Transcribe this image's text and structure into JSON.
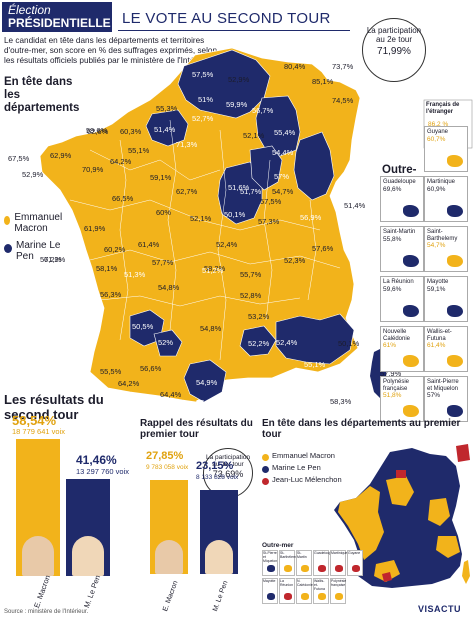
{
  "header": {
    "badge_line1": "Élection",
    "badge_line2": "PRÉSIDENTIELLE",
    "title": "LE VOTE AU SECOND TOUR"
  },
  "intro": "Le candidat en tête dans les départements et territoires d'outre-mer, son score en % des suffrages exprimés, selon les résultats officiels publiés par le ministère de l'Intérieur.",
  "map_section_title": "En tête dans les départements",
  "legend": [
    {
      "label": "Emmanuel Macron",
      "color": "#f2b31b"
    },
    {
      "label": "Marine Le Pen",
      "color": "#1f2a6b"
    }
  ],
  "participation_second": {
    "label": "La participation au 2e tour",
    "value": "71,99%"
  },
  "francais_etranger": {
    "label": "Français de l'étranger",
    "value": "86,2 %"
  },
  "outremer_title": "Outre-mer",
  "outremer": [
    {
      "name": "Guyane",
      "value": "60,7%",
      "winner": "macron"
    },
    {
      "name": "Guadeloupe",
      "value": "69,6%",
      "winner": "lepen"
    },
    {
      "name": "Martinique",
      "value": "60,9%",
      "winner": "lepen"
    },
    {
      "name": "Saint-Martin",
      "value": "55,8%",
      "winner": "lepen"
    },
    {
      "name": "Saint-Barthelemy",
      "value": "54,7%",
      "winner": "macron"
    },
    {
      "name": "La Réunion",
      "value": "59,6%",
      "winner": "lepen"
    },
    {
      "name": "Mayotte",
      "value": "59,1%",
      "winner": "lepen"
    },
    {
      "name": "Nouvelle Calédonie",
      "value": "61%",
      "winner": "macron"
    },
    {
      "name": "Wallis-et-Futuna",
      "value": "61,4%",
      "winner": "macron"
    },
    {
      "name": "Polynésie française",
      "value": "51,8%",
      "winner": "macron"
    },
    {
      "name": "Saint-Pierre et Miquelon",
      "value": "57%",
      "winner": "lepen"
    }
  ],
  "map_labels": [
    "57,5%",
    "52,9%",
    "51%",
    "55,3%",
    "59,9%",
    "56,7%",
    "52,7%",
    "51,4%",
    "62,6%",
    "71,3%",
    "52,1%",
    "55,4%",
    "60,3%",
    "59,6%",
    "55,1%",
    "67,5%",
    "62,9%",
    "73,7%",
    "52,9%",
    "80,4%",
    "85,1%",
    "74,5%",
    "70,9%",
    "64,2%",
    "66,5%",
    "59,1%",
    "60%",
    "62,7%",
    "61,9%",
    "52,1%",
    "51,6%",
    "57,5%",
    "61,2%",
    "56,9%",
    "50,1%",
    "57,3%",
    "51,4%",
    "57,6%",
    "52,4%",
    "52,3%",
    "51,7%",
    "57%",
    "54,4%",
    "54,7%",
    "57,2%",
    "61,4%",
    "57,7%",
    "58,1%",
    "60,2%",
    "56,3%",
    "51,3%",
    "54,8%",
    "58,2%",
    "55,7%",
    "50,5%",
    "52%",
    "54,8%",
    "53,2%",
    "51,2%",
    "52,8%",
    "52,2%",
    "52,4%",
    "55,1%",
    "50,1%",
    "57,9%",
    "58,3%",
    "56,3%",
    "54,9%",
    "64,4%",
    "55,5%",
    "64,2%",
    "56,6%"
  ],
  "results_title": "Les résultats du second tour",
  "results": [
    {
      "name": "E. Macron",
      "pct": "58,54%",
      "votes": "18 779 641 voix",
      "share": 0.5854,
      "color": "#f2b31b"
    },
    {
      "name": "M. Le Pen",
      "pct": "41,46%",
      "votes": "13 297 760 voix",
      "share": 0.4146,
      "color": "#1f2a6b"
    }
  ],
  "first_round_title": "Rappel des résultats du premier tour",
  "participation_first": {
    "label": "La participation au 1er tour",
    "value": "73,69%"
  },
  "first_round": [
    {
      "name": "E. Macron",
      "pct": "27,85%",
      "votes": "9 783 058 voix",
      "share": 0.2785,
      "color": "#f2b31b"
    },
    {
      "name": "M. Le Pen",
      "pct": "23,15%",
      "votes": "8 133 828 voix",
      "share": 0.2315,
      "color": "#1f2a6b"
    }
  ],
  "first_round_map_title": "En tête dans les départements au premier tour",
  "first_round_legend": [
    {
      "label": "Emmanuel Macron",
      "color": "#f2b31b"
    },
    {
      "label": "Marine Le Pen",
      "color": "#1f2a6b"
    },
    {
      "label": "Jean-Luc Mélenchon",
      "color": "#c0272d"
    }
  ],
  "first_round_outremer_title": "Outre-mer",
  "first_round_outremer_labels": [
    "St-Pierre et Miquelon",
    "St-Barthélemy",
    "St-Martin",
    "Guadeloupe",
    "Martinique",
    "Guyane",
    "Mayotte",
    "La Réunion",
    "N. Calédonie",
    "Wallis-et-Futuna",
    "Polynésie française"
  ],
  "source": "Source : ministère de l'Intérieur.",
  "logo": "VISACTU"
}
